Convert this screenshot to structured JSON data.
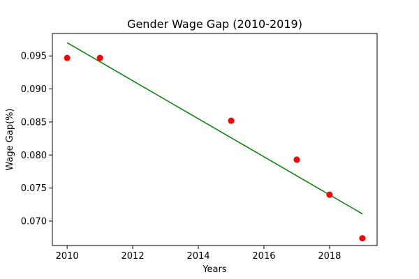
{
  "chart_data": {
    "type": "scatter",
    "title": "Gender Wage Gap (2010-2019)",
    "xlabel": "Years",
    "ylabel": "Wage Gap(%)",
    "xlim": [
      2009.55,
      2019.45
    ],
    "ylim": [
      0.0663,
      0.0984
    ],
    "xticks": [
      2010,
      2012,
      2014,
      2016,
      2018
    ],
    "yticks": [
      0.07,
      0.075,
      0.08,
      0.085,
      0.09,
      0.095
    ],
    "grid": false,
    "points": {
      "color": "#ff0000",
      "x": [
        2010,
        2011,
        2015,
        2017,
        2018,
        2019
      ],
      "y": [
        0.0947,
        0.0947,
        0.0852,
        0.0793,
        0.074,
        0.0674
      ]
    },
    "trend_line": {
      "color": "#008000",
      "x": [
        2010,
        2019
      ],
      "y": [
        0.097,
        0.0711
      ]
    }
  }
}
